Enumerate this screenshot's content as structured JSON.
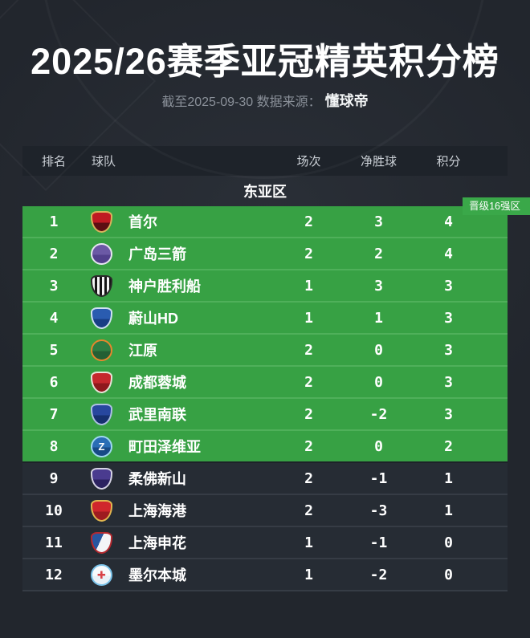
{
  "header": {
    "title": "2025/26赛季亚冠精英积分榜",
    "subtitle_prefix": "截至2025-09-30 数据来源：",
    "subtitle_source": "懂球帝"
  },
  "colors": {
    "qualify_green": "#37a144",
    "qualify_divider": "#4fb05a",
    "tag_green": "#3aa849",
    "page_bg": "#22262d",
    "row_dark": "#262c34",
    "header_band": "#1e232a"
  },
  "table": {
    "columns": [
      "排名",
      "球队",
      "场次",
      "净胜球",
      "积分"
    ],
    "section": "东亚区",
    "qualify_tag": "晋级16强区",
    "qualify_count": 8,
    "rows": [
      {
        "rank": "1",
        "team": "首尔",
        "matches": "2",
        "gd": "3",
        "points": "4",
        "logo": {
          "name": "fc-seoul-crest",
          "shape": "shield",
          "c1": "#c01a22",
          "c2": "#5c0f13",
          "ring": "#d8b35c",
          "glyph": "",
          "glyph_color": ""
        }
      },
      {
        "rank": "2",
        "team": "广岛三箭",
        "matches": "2",
        "gd": "2",
        "points": "4",
        "logo": {
          "name": "sanfrecce-hiroshima-crest",
          "shape": "circle",
          "c1": "#6b59a5",
          "c2": "#51408c",
          "ring": "#e7e6f2",
          "glyph": "",
          "glyph_color": ""
        }
      },
      {
        "rank": "3",
        "team": "神户胜利船",
        "matches": "1",
        "gd": "3",
        "points": "3",
        "logo": {
          "name": "vissel-kobe-crest",
          "shape": "shield",
          "c1": "#f5f5f5",
          "c2": "#151515",
          "ring": "#2a2a2a",
          "pattern": "stripes",
          "glyph": "",
          "glyph_color": ""
        }
      },
      {
        "rank": "4",
        "team": "蔚山HD",
        "matches": "1",
        "gd": "1",
        "points": "3",
        "logo": {
          "name": "ulsan-hd-crest",
          "shape": "shield",
          "c1": "#2a5cb0",
          "c2": "#183e85",
          "ring": "#cfe0f2",
          "glyph": "",
          "glyph_color": ""
        }
      },
      {
        "rank": "5",
        "team": "江原",
        "matches": "2",
        "gd": "0",
        "points": "3",
        "logo": {
          "name": "gangwon-fc-crest",
          "shape": "circle",
          "c1": "#2e7d43",
          "c2": "#245f34",
          "ring": "#e8862d",
          "glyph": "",
          "glyph_color": ""
        }
      },
      {
        "rank": "6",
        "team": "成都蓉城",
        "matches": "2",
        "gd": "0",
        "points": "3",
        "logo": {
          "name": "chengdu-rongcheng-crest",
          "shape": "shield",
          "c1": "#c5272d",
          "c2": "#8e181d",
          "ring": "#e8e2d8",
          "glyph": "",
          "glyph_color": ""
        }
      },
      {
        "rank": "7",
        "team": "武里南联",
        "matches": "2",
        "gd": "-2",
        "points": "3",
        "logo": {
          "name": "buriram-united-crest",
          "shape": "shield",
          "c1": "#27479e",
          "c2": "#16306f",
          "ring": "#aebfe4",
          "glyph": "",
          "glyph_color": ""
        }
      },
      {
        "rank": "8",
        "team": "町田泽维亚",
        "matches": "2",
        "gd": "0",
        "points": "2",
        "logo": {
          "name": "machida-zelvia-crest",
          "shape": "circle",
          "c1": "#2a6db5",
          "c2": "#174a86",
          "ring": "#9fd7f0",
          "glyph": "Z",
          "glyph_color": "#ffffff"
        }
      },
      {
        "rank": "9",
        "team": "柔佛新山",
        "matches": "2",
        "gd": "-1",
        "points": "1",
        "logo": {
          "name": "johor-darul-tazim-crest",
          "shape": "shield",
          "c1": "#4a3b8f",
          "c2": "#2c2260",
          "ring": "#d5d2e4",
          "glyph": "",
          "glyph_color": ""
        }
      },
      {
        "rank": "10",
        "team": "上海海港",
        "matches": "2",
        "gd": "-3",
        "points": "1",
        "logo": {
          "name": "shanghai-port-crest",
          "shape": "shield",
          "c1": "#d0262c",
          "c2": "#9e1b20",
          "ring": "#e0b64f",
          "glyph": "",
          "glyph_color": ""
        }
      },
      {
        "rank": "11",
        "team": "上海申花",
        "matches": "1",
        "gd": "-1",
        "points": "0",
        "logo": {
          "name": "shanghai-shenhua-crest",
          "shape": "shield",
          "c1": "#f3f5f8",
          "c2": "#28569f",
          "ring": "#b5292f",
          "pattern": "split",
          "glyph": "",
          "glyph_color": ""
        }
      },
      {
        "rank": "12",
        "team": "墨尔本城",
        "matches": "1",
        "gd": "-2",
        "points": "0",
        "logo": {
          "name": "melbourne-city-crest",
          "shape": "circle",
          "c1": "#f7fafc",
          "c2": "#e9f1f7",
          "ring": "#79c1e8",
          "glyph": "✚",
          "glyph_color": "#d94147"
        }
      }
    ]
  }
}
